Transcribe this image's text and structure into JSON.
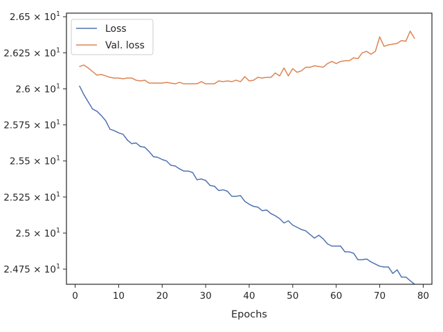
{
  "chart_data": {
    "type": "line",
    "xlabel": "Epochs",
    "ylabel": "",
    "xlim": [
      -2,
      82
    ],
    "ylim": [
      24.645,
      26.525
    ],
    "x_ticks": [
      0,
      10,
      20,
      30,
      40,
      50,
      60,
      70,
      80
    ],
    "x_tick_labels": [
      "0",
      "10",
      "20",
      "30",
      "40",
      "50",
      "60",
      "70",
      "80"
    ],
    "y_ticks": [
      24.75,
      25.0,
      25.25,
      25.5,
      25.75,
      26.0,
      26.25,
      26.5
    ],
    "y_tick_labels": [
      {
        "mantissa": "2.475",
        "base": "10",
        "exp": "1"
      },
      {
        "mantissa": "2.5",
        "base": "10",
        "exp": "1"
      },
      {
        "mantissa": "2.525",
        "base": "10",
        "exp": "1"
      },
      {
        "mantissa": "2.55",
        "base": "10",
        "exp": "1"
      },
      {
        "mantissa": "2.575",
        "base": "10",
        "exp": "1"
      },
      {
        "mantissa": "2.6",
        "base": "10",
        "exp": "1"
      },
      {
        "mantissa": "2.625",
        "base": "10",
        "exp": "1"
      },
      {
        "mantissa": "2.65",
        "base": "10",
        "exp": "1"
      }
    ],
    "grid": false,
    "legend_position": "top-left",
    "series": [
      {
        "name": "Loss",
        "color": "#4c72b0",
        "x": [
          1,
          2,
          3,
          4,
          5,
          6,
          7,
          8,
          9,
          10,
          11,
          12,
          13,
          14,
          15,
          16,
          17,
          18,
          19,
          20,
          21,
          22,
          23,
          24,
          25,
          26,
          27,
          28,
          29,
          30,
          31,
          32,
          33,
          34,
          35,
          36,
          37,
          38,
          39,
          40,
          41,
          42,
          43,
          44,
          45,
          46,
          47,
          48,
          49,
          50,
          51,
          52,
          53,
          54,
          55,
          56,
          57,
          58,
          59,
          60,
          61,
          62,
          63,
          64,
          65,
          66,
          67,
          68,
          69,
          70,
          71,
          72,
          73,
          74,
          75,
          76,
          77,
          78
        ],
        "values": [
          26.02,
          25.96,
          25.91,
          25.86,
          25.845,
          25.815,
          25.78,
          25.72,
          25.71,
          25.695,
          25.685,
          25.645,
          25.62,
          25.625,
          25.6,
          25.595,
          25.565,
          25.53,
          25.525,
          25.51,
          25.5,
          25.47,
          25.465,
          25.445,
          25.43,
          25.43,
          25.42,
          25.37,
          25.375,
          25.365,
          25.33,
          25.325,
          25.295,
          25.3,
          25.29,
          25.255,
          25.255,
          25.26,
          25.22,
          25.2,
          25.185,
          25.18,
          25.155,
          25.16,
          25.135,
          25.12,
          25.1,
          25.07,
          25.085,
          25.055,
          25.04,
          25.025,
          25.015,
          24.99,
          24.965,
          24.985,
          24.96,
          24.925,
          24.91,
          24.91,
          24.91,
          24.87,
          24.87,
          24.86,
          24.815,
          24.815,
          24.82,
          24.8,
          24.785,
          24.77,
          24.765,
          24.765,
          24.72,
          24.745,
          24.695,
          24.695,
          24.67,
          24.645
        ]
      },
      {
        "name": "Val. loss",
        "color": "#dd8452",
        "x": [
          1,
          2,
          3,
          4,
          5,
          6,
          7,
          8,
          9,
          10,
          11,
          12,
          13,
          14,
          15,
          16,
          17,
          18,
          19,
          20,
          21,
          22,
          23,
          24,
          25,
          26,
          27,
          28,
          29,
          30,
          31,
          32,
          33,
          34,
          35,
          36,
          37,
          38,
          39,
          40,
          41,
          42,
          43,
          44,
          45,
          46,
          47,
          48,
          49,
          50,
          51,
          52,
          53,
          54,
          55,
          56,
          57,
          58,
          59,
          60,
          61,
          62,
          63,
          64,
          65,
          66,
          67,
          68,
          69,
          70,
          71,
          72,
          73,
          74,
          75,
          76,
          77,
          78
        ],
        "values": [
          26.155,
          26.165,
          26.145,
          26.12,
          26.095,
          26.1,
          26.09,
          26.08,
          26.075,
          26.075,
          26.07,
          26.075,
          26.075,
          26.06,
          26.055,
          26.06,
          26.04,
          26.04,
          26.04,
          26.04,
          26.045,
          26.04,
          26.035,
          26.045,
          26.035,
          26.035,
          26.035,
          26.035,
          26.05,
          26.035,
          26.035,
          26.035,
          26.055,
          26.05,
          26.055,
          26.05,
          26.06,
          26.05,
          26.085,
          26.055,
          26.06,
          26.08,
          26.075,
          26.08,
          26.08,
          26.11,
          26.09,
          26.145,
          26.09,
          26.14,
          26.115,
          26.125,
          26.15,
          26.15,
          26.16,
          26.155,
          26.15,
          26.175,
          26.19,
          26.175,
          26.19,
          26.195,
          26.195,
          26.215,
          26.21,
          26.25,
          26.26,
          26.24,
          26.26,
          26.36,
          26.295,
          26.305,
          26.31,
          26.315,
          26.335,
          26.33,
          26.4,
          26.35
        ]
      }
    ]
  }
}
